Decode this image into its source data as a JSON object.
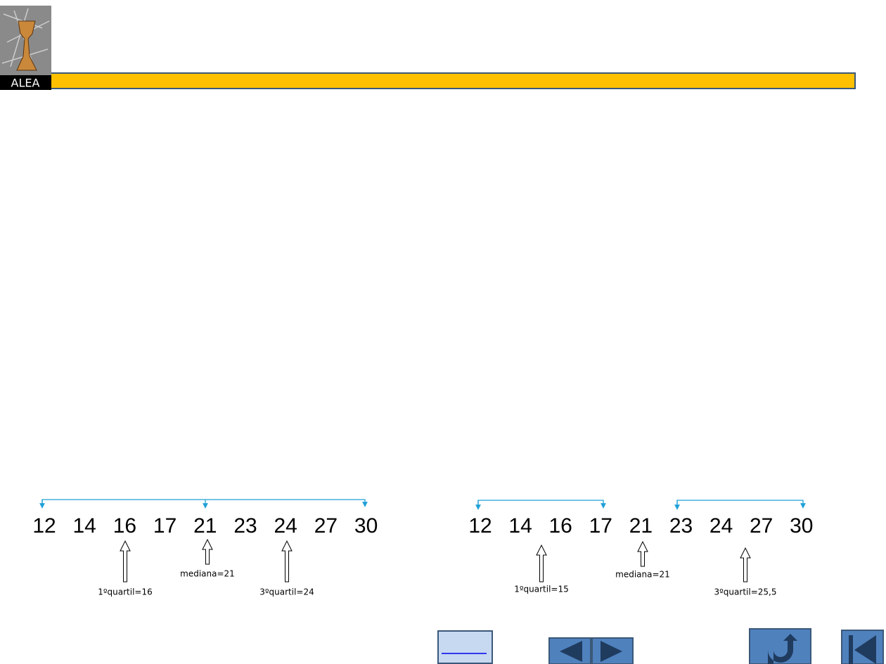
{
  "logo": {
    "text": "ALEA"
  },
  "left": {
    "numbers": [
      12,
      14,
      16,
      17,
      21,
      23,
      24,
      27,
      30
    ],
    "labels": [
      "1ºquartil=16",
      "mediana=21",
      "3ºquartil=24"
    ]
  },
  "right": {
    "numbers": [
      12,
      14,
      16,
      17,
      21,
      23,
      24,
      27,
      30
    ],
    "labels": [
      "1ºquartil=15",
      "mediana=21",
      "3ºquartil=25,5"
    ]
  }
}
